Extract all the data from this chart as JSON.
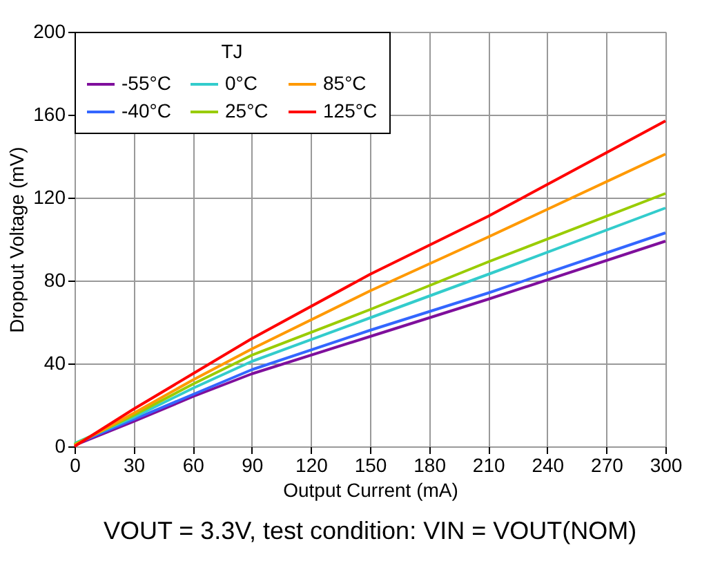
{
  "chart_data": {
    "type": "line",
    "xlabel": "Output Current (mA)",
    "ylabel": "Dropout Voltage (mV)",
    "legend_title": "TJ",
    "legend": "top left",
    "grid": true,
    "marker": "none",
    "line_style": "solid",
    "x": [
      0,
      30,
      60,
      90,
      150,
      210,
      300
    ],
    "xlim": [
      0,
      300
    ],
    "xticks": [
      0,
      30,
      60,
      90,
      120,
      150,
      180,
      210,
      240,
      270,
      300
    ],
    "ylim": [
      0,
      200
    ],
    "yticks": [
      0,
      40,
      80,
      120,
      160,
      200
    ],
    "series": [
      {
        "name": "-55°C",
        "color": "#7f0f9c",
        "values": [
          0.5,
          12,
          24,
          35,
          53,
          71,
          99
        ]
      },
      {
        "name": "-40°C",
        "color": "#3366ff",
        "values": [
          1,
          13,
          25,
          37,
          56,
          74,
          103
        ]
      },
      {
        "name": "0°C",
        "color": "#33cccc",
        "values": [
          1.5,
          14,
          28,
          41,
          62,
          83,
          115
        ]
      },
      {
        "name": "25°C",
        "color": "#99cc00",
        "values": [
          1,
          15,
          30,
          44,
          66,
          89,
          122
        ]
      },
      {
        "name": "85°C",
        "color": "#ff9900",
        "values": [
          0.5,
          16,
          32,
          47,
          75,
          101,
          141
        ]
      },
      {
        "name": "125°C",
        "color": "#ff0000",
        "values": [
          0,
          18,
          35,
          52,
          83,
          111,
          157
        ]
      }
    ],
    "annotations": [
      "VOUT = 3.3V, test condition: VIN = VOUT(NOM)"
    ]
  }
}
